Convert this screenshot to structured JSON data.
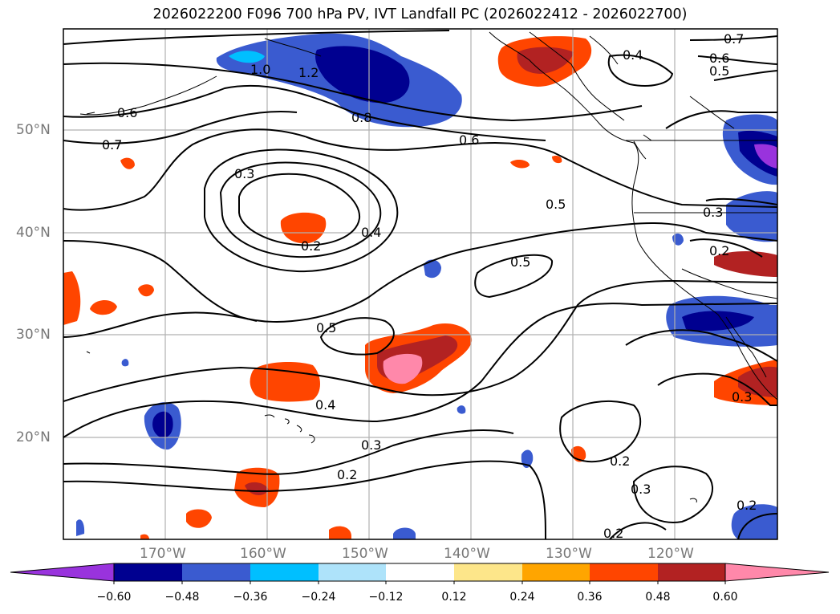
{
  "title": "2026022200 F096 700 hPa PV, IVT Landfall PC (2026022412 - 2026022700)",
  "latitude_labels": [
    "50°N",
    "40°N",
    "30°N",
    "20°N"
  ],
  "longitude_labels": [
    "170°W",
    "160°W",
    "150°W",
    "140°W",
    "130°W",
    "120°W"
  ],
  "contour_labels": [
    "0.7",
    "0.6",
    "0.5",
    "0.4",
    "1.0",
    "1.2",
    "0.6",
    "0.7",
    "0.8",
    "0.6",
    "0.3",
    "0.5",
    "0.2",
    "0.4",
    "0.5",
    "0.5",
    "0.4",
    "0.3",
    "0.2",
    "0.2",
    "0.3",
    "0.3",
    "0.2",
    "0.3",
    "0.2",
    "0.2"
  ],
  "colorbar": {
    "ticks": [
      "−0.60",
      "−0.48",
      "−0.36",
      "−0.24",
      "−0.12",
      "0.12",
      "0.24",
      "0.36",
      "0.48",
      "0.60"
    ],
    "colors": [
      "#9933dd",
      "#000090",
      "#3a5bd0",
      "#00bfff",
      "#aee3fa",
      "#ffffff",
      "#fde68a",
      "#ffa500",
      "#ff4500",
      "#b22222",
      "#ff88aa"
    ]
  }
}
